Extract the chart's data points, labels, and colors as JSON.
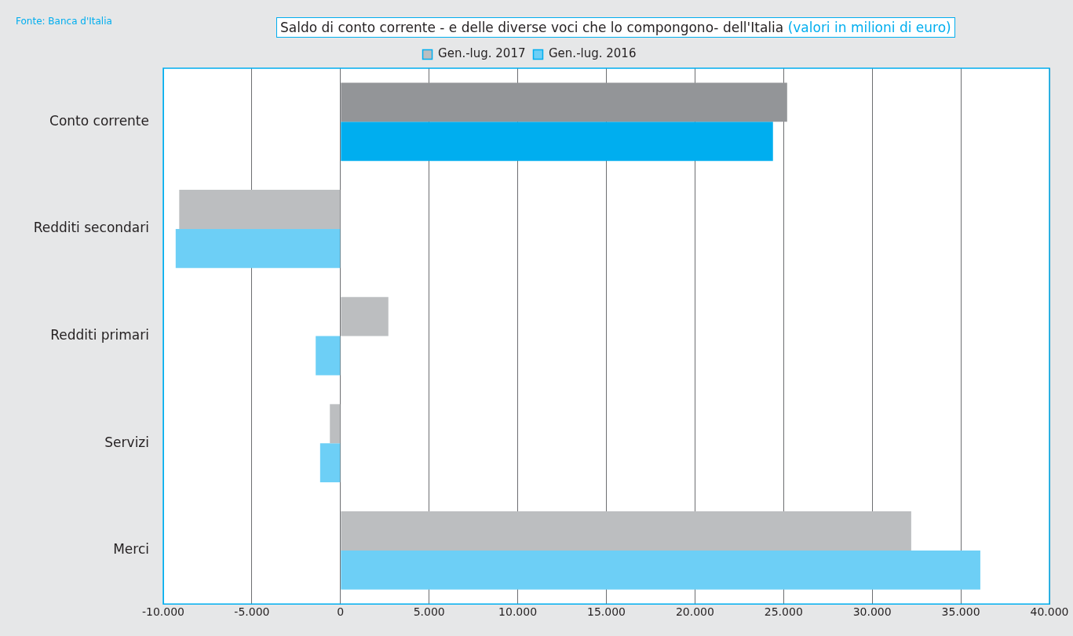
{
  "chart_data": {
    "type": "bar",
    "orientation": "horizontal",
    "title": "Saldo di conto corrente - e delle diverse voci che lo compongono- dell'Italia",
    "subtitle": "(valori in milioni di euro)",
    "annotations": [
      "Fonte: Banca d'Italia"
    ],
    "categories": [
      "Conto corrente",
      "Redditi secondari",
      "Redditi primari",
      "Servizi",
      "Merci"
    ],
    "series": [
      {
        "name": "Gen.-lug. 2017",
        "color": "#bcbec0",
        "colors": [
          "#939598",
          "#bcbec0",
          "#bcbec0",
          "#bcbec0",
          "#bcbec0"
        ],
        "values": [
          25200,
          -9100,
          2700,
          -600,
          32200
        ]
      },
      {
        "name": "Gen.-lug. 2016",
        "color": "#6dcff6",
        "colors": [
          "#00aeef",
          "#6dcff6",
          "#6dcff6",
          "#6dcff6",
          "#6dcff6"
        ],
        "values": [
          24400,
          -9300,
          -1400,
          -1150,
          36100
        ]
      }
    ],
    "xlim": [
      -10000,
      40000
    ],
    "xticks": [
      {
        "value": -10000,
        "label": "-10.000"
      },
      {
        "value": -5000,
        "label": "-5.000"
      },
      0,
      {
        "value": 5000,
        "label": "5.000"
      },
      {
        "value": 10000,
        "label": "10.000"
      },
      {
        "value": 15000,
        "label": "15.000"
      },
      {
        "value": 20000,
        "label": "20.000"
      },
      {
        "value": 25000,
        "label": "25.000"
      },
      {
        "value": 30000,
        "label": "30.000"
      },
      {
        "value": 35000,
        "label": "35.000"
      },
      {
        "value": 40000,
        "label": "40.000"
      }
    ],
    "grid": "x",
    "legend": "top"
  }
}
